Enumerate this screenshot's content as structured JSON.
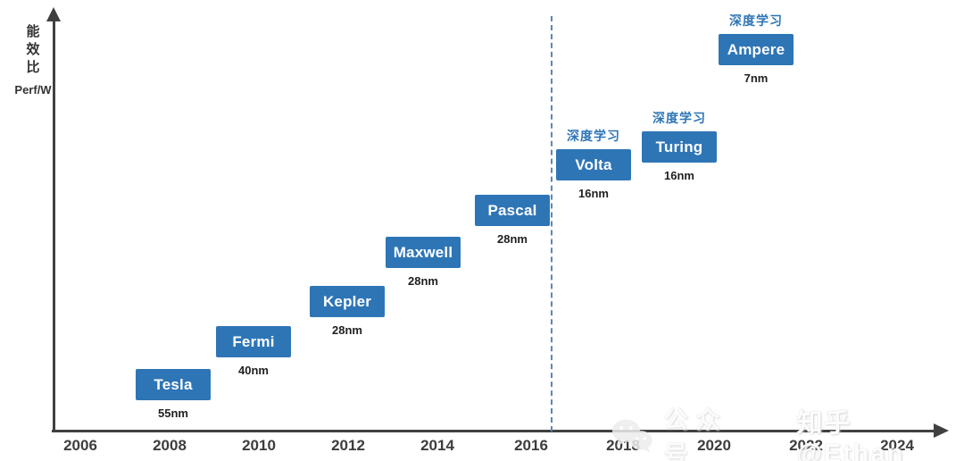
{
  "chart_data": {
    "type": "bar",
    "ylabel": "能效比",
    "ylabel_sub": "Perf/W",
    "x_ticks": [
      "2006",
      "2008",
      "2010",
      "2012",
      "2014",
      "2016",
      "2018",
      "2020",
      "2022",
      "2024"
    ],
    "x_range": [
      2005.4,
      2025.2
    ],
    "divider_x": 2016.4,
    "dl_annotation": "深度学习",
    "legend": "none",
    "grid": false,
    "series": [
      {
        "name": "Tesla",
        "process": "55nm",
        "year": 2008.0,
        "deep_learning": false
      },
      {
        "name": "Fermi",
        "process": "40nm",
        "year": 2009.8,
        "deep_learning": false
      },
      {
        "name": "Kepler",
        "process": "28nm",
        "year": 2011.9,
        "deep_learning": false
      },
      {
        "name": "Maxwell",
        "process": "28nm",
        "year": 2013.6,
        "deep_learning": false
      },
      {
        "name": "Pascal",
        "process": "28nm",
        "year": 2015.5,
        "deep_learning": false
      },
      {
        "name": "Volta",
        "process": "16nm",
        "year": 2017.3,
        "deep_learning": true
      },
      {
        "name": "Turing",
        "process": "16nm",
        "year": 2019.2,
        "deep_learning": true
      },
      {
        "name": "Ampere",
        "process": "7nm",
        "year": 2020.9,
        "deep_learning": true
      }
    ],
    "colors": {
      "bar": "#2E75B6",
      "axis": "#404040",
      "divider": "#5A87B8",
      "dl_label": "#2E75B6"
    }
  },
  "watermark": {
    "icon": "wechat-icon",
    "text1": "公众号",
    "text2": "知乎 @Ethan"
  }
}
